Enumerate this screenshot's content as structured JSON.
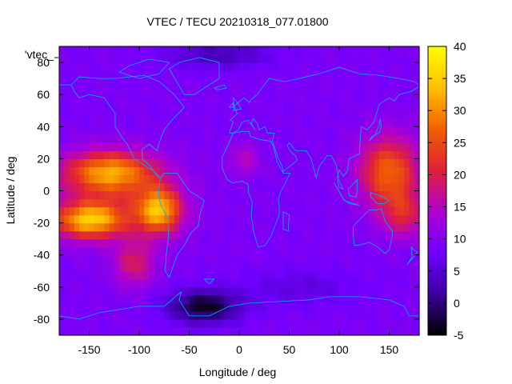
{
  "chart_data": {
    "type": "heatmap",
    "title": "VTEC / TECU 20210318_077.01800",
    "xlabel": "Longitude / deg",
    "ylabel": "Latitude / deg",
    "series_key": "'vtec_",
    "xlim": [
      -180,
      180
    ],
    "ylim": [
      -90,
      90
    ],
    "x_ticks": [
      -150,
      -100,
      -50,
      0,
      50,
      100,
      150
    ],
    "y_ticks": [
      -80,
      -60,
      -40,
      -20,
      0,
      20,
      40,
      60,
      80
    ],
    "colorbar": {
      "range": [
        -5,
        40
      ],
      "ticks": [
        -5,
        0,
        5,
        10,
        15,
        20,
        25,
        30,
        35,
        40
      ],
      "palette": [
        "#000000",
        "#3a00a0",
        "#7000ff",
        "#b000d0",
        "#e0203a",
        "#f06000",
        "#ffc000",
        "#ffff00"
      ]
    },
    "features": {
      "background_tec": 9,
      "equatorial_anomaly_americas": {
        "lon_range": [
          -180,
          -60
        ],
        "lat_range": [
          -40,
          30
        ],
        "peak_tec": 36,
        "peak_location": [
          -150,
          -18
        ]
      },
      "secondary_peak_americas": {
        "lon": -80,
        "lat": -10,
        "tec": 33
      },
      "southern_extension": {
        "lon": -105,
        "lat": -45,
        "tec": 20
      },
      "equatorial_anomaly_asia_pacific": {
        "lon_range": [
          100,
          180
        ],
        "lat_range": [
          -30,
          35
        ],
        "peak_tec": 27,
        "peak_location": [
          150,
          15
        ]
      },
      "africa_bump": {
        "lon": 5,
        "lat": 20,
        "tec": 15
      },
      "polar_minimum_south": {
        "lon": -35,
        "lat": -72,
        "tec": -4
      },
      "polar_low_north": {
        "lon": -20,
        "lat": 85,
        "tec": 3
      }
    },
    "coastline_color": "#00b0ff"
  }
}
